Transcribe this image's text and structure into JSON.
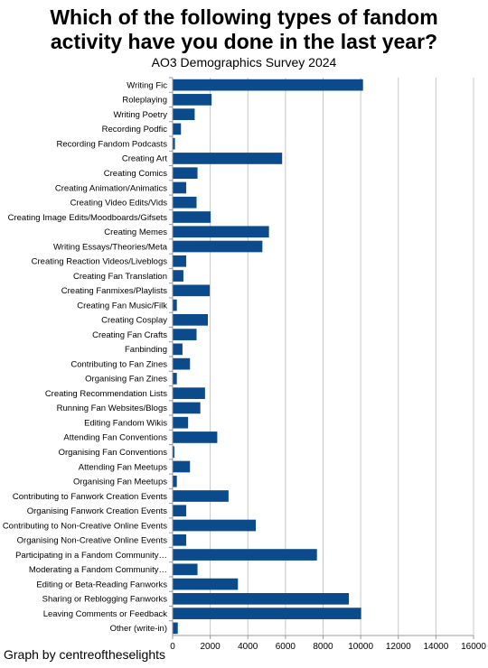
{
  "chart_data": {
    "type": "bar",
    "orientation": "horizontal",
    "title": "Which of the following types of fandom activity have you done in the last year?",
    "subtitle": "AO3 Demographics Survey 2024",
    "credit": "Graph by centreoftheselights",
    "xlim": [
      0,
      16000
    ],
    "xticks": [
      0,
      2000,
      4000,
      6000,
      8000,
      10000,
      12000,
      14000,
      16000
    ],
    "grid": true,
    "bar_color": "#0b4a8b",
    "categories": [
      "Writing Fic",
      "Roleplaying",
      "Writing Poetry",
      "Recording Podfic",
      "Recording Fandom Podcasts",
      "Creating Art",
      "Creating Comics",
      "Creating Animation/Animatics",
      "Creating Video Edits/Vids",
      "Creating Image Edits/Moodboards/Gifsets",
      "Creating Memes",
      "Writing Essays/Theories/Meta",
      "Creating Reaction Videos/Liveblogs",
      "Creating Fan Translation",
      "Creating Fanmixes/Playlists",
      "Creating Fan Music/Filk",
      "Creating Cosplay",
      "Creating Fan Crafts",
      "Fanbinding",
      "Contributing to Fan Zines",
      "Organising Fan Zines",
      "Creating Recommendation Lists",
      "Running Fan Websites/Blogs",
      "Editing Fandom Wikis",
      "Attending Fan Conventions",
      "Organising Fan Conventions",
      "Attending Fan Meetups",
      "Organising Fan Meetups",
      "Contributing to Fanwork Creation Events",
      "Organising Fanwork Creation Events",
      "Contributing to Non-Creative Online Events",
      "Organising Non-Creative Online Events",
      "Participating in a Fandom Community…",
      "Moderating a Fandom Community…",
      "Editing or Beta-Reading Fanworks",
      "Sharing or Reblogging Fanworks",
      "Leaving Comments or Feedback",
      "Other (write-in)"
    ],
    "values": [
      10100,
      2050,
      1150,
      420,
      100,
      5800,
      1300,
      700,
      1250,
      2000,
      5100,
      4750,
      700,
      550,
      1950,
      200,
      1850,
      1250,
      500,
      900,
      200,
      1700,
      1450,
      800,
      2350,
      70,
      900,
      200,
      2950,
      700,
      4400,
      700,
      7650,
      1300,
      3450,
      9350,
      10000,
      250
    ]
  }
}
